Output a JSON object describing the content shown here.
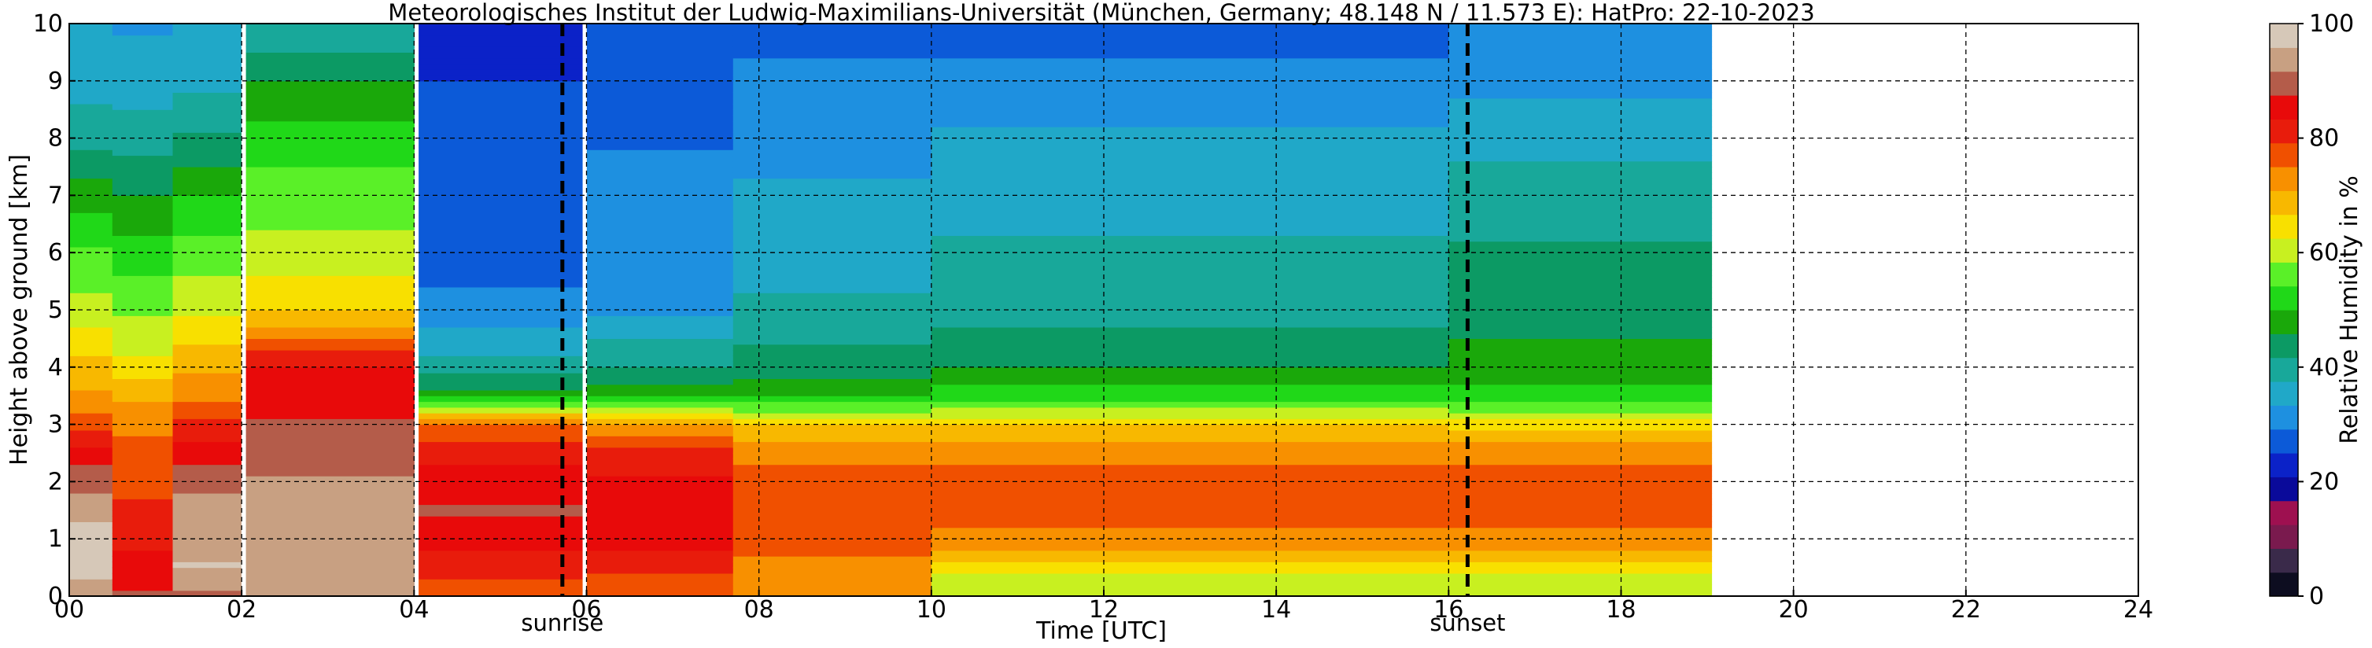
{
  "chart_data": {
    "type": "heatmap",
    "title": "Meteorologisches Institut der Ludwig-Maximilians-Universität (München, Germany; 48.148 N / 11.573 E):    HatPro: 22-10-2023",
    "xlabel": "Time [UTC]",
    "ylabel": "Height above ground [km]",
    "xlim": [
      0,
      24
    ],
    "ylim": [
      0,
      10
    ],
    "x_ticks": [
      "00",
      "02",
      "04",
      "06",
      "08",
      "10",
      "12",
      "14",
      "16",
      "18",
      "20",
      "22",
      "24"
    ],
    "x_tick_values": [
      0,
      2,
      4,
      6,
      8,
      10,
      12,
      14,
      16,
      18,
      20,
      22,
      24
    ],
    "y_ticks": [
      "0",
      "1",
      "2",
      "3",
      "4",
      "5",
      "6",
      "7",
      "8",
      "9",
      "10"
    ],
    "y_tick_values": [
      0,
      1,
      2,
      3,
      4,
      5,
      6,
      7,
      8,
      9,
      10
    ],
    "grid": true,
    "data_end_time": 19.05,
    "data_gaps": [
      2.02,
      4.03,
      5.98
    ],
    "events": [
      {
        "label": "sunrise",
        "time": 5.72
      },
      {
        "label": "sunset",
        "time": 16.22
      }
    ],
    "colorbar": {
      "label": "Relative Humidity in %",
      "min": 0,
      "max": 100,
      "ticks": [
        "0",
        "20",
        "40",
        "60",
        "80",
        "100"
      ],
      "tick_values": [
        0,
        20,
        40,
        60,
        80,
        100
      ],
      "colors": [
        "#0d0d20",
        "#3a2a4a",
        "#7a1a4e",
        "#9e1050",
        "#0a0a9a",
        "#0b22c8",
        "#0c5ad8",
        "#1e90e0",
        "#20a8c8",
        "#18a89a",
        "#0c9a64",
        "#1aa80a",
        "#20d818",
        "#5af028",
        "#c8f020",
        "#f8e000",
        "#f8b800",
        "#f89000",
        "#f05000",
        "#e81c0c",
        "#e80a0a",
        "#b45c4a",
        "#c8a082",
        "#d6c8b8"
      ]
    },
    "profiles": [
      {
        "time_range": [
          0.0,
          0.5
        ],
        "height_km": [
          0,
          0.5,
          1,
          1.5,
          2,
          2.5,
          3,
          3.5,
          4,
          5,
          6,
          7,
          8,
          9,
          10
        ],
        "rh_percent": [
          92,
          98,
          97,
          95,
          90,
          85,
          78,
          72,
          68,
          60,
          55,
          48,
          40,
          36,
          34
        ]
      },
      {
        "time_range": [
          0.5,
          1.2
        ],
        "height_km": [
          0,
          0.5,
          1,
          1.5,
          2,
          2.5,
          3,
          3.5,
          4,
          5,
          6,
          7,
          8,
          9,
          10
        ],
        "rh_percent": [
          88,
          85,
          82,
          80,
          78,
          76,
          74,
          70,
          64,
          58,
          52,
          46,
          40,
          35,
          33
        ]
      },
      {
        "time_range": [
          1.2,
          2.0
        ],
        "height_km": [
          0,
          0.5,
          1,
          1.5,
          2,
          2.5,
          3,
          3.5,
          4,
          5,
          6,
          7,
          8,
          9,
          10
        ],
        "rh_percent": [
          90,
          96,
          95,
          94,
          90,
          86,
          80,
          74,
          70,
          62,
          56,
          50,
          42,
          36,
          34
        ]
      },
      {
        "time_range": [
          2.05,
          4.0
        ],
        "height_km": [
          0,
          0.5,
          1,
          1.5,
          2,
          2.5,
          3,
          3.5,
          4,
          5,
          6,
          7,
          8,
          9,
          10
        ],
        "rh_percent": [
          92,
          95,
          95,
          94,
          92,
          90,
          88,
          86,
          84,
          66,
          60,
          56,
          52,
          46,
          38
        ]
      },
      {
        "time_range": [
          4.05,
          5.95
        ],
        "height_km": [
          0,
          0.5,
          1,
          1.5,
          2,
          2.5,
          3,
          3.5,
          4,
          5,
          6,
          7,
          8,
          9,
          10
        ],
        "rh_percent": [
          78,
          80,
          85,
          88,
          86,
          82,
          76,
          48,
          40,
          30,
          28,
          27,
          26,
          25,
          24
        ]
      },
      {
        "time_range": [
          6.0,
          7.7
        ],
        "height_km": [
          0,
          0.5,
          1,
          1.5,
          2,
          2.5,
          3,
          3.5,
          4,
          5,
          6,
          7,
          8,
          9,
          10
        ],
        "rh_percent": [
          76,
          80,
          86,
          86,
          84,
          80,
          72,
          48,
          42,
          32,
          30,
          30,
          29,
          28,
          26
        ]
      },
      {
        "time_range": [
          7.7,
          10.0
        ],
        "height_km": [
          0,
          0.5,
          1,
          1.5,
          2,
          2.5,
          3,
          3.5,
          4,
          5,
          6,
          7,
          8,
          9,
          10
        ],
        "rh_percent": [
          72,
          74,
          76,
          76,
          76,
          74,
          66,
          50,
          44,
          38,
          36,
          34,
          32,
          30,
          28
        ]
      },
      {
        "time_range": [
          10.0,
          16.0
        ],
        "height_km": [
          0,
          0.5,
          1,
          1.5,
          2,
          2.5,
          3,
          3.5,
          4,
          5,
          6,
          7,
          8,
          9,
          10
        ],
        "rh_percent": [
          58,
          64,
          74,
          76,
          76,
          74,
          66,
          52,
          46,
          40,
          38,
          36,
          34,
          30,
          28
        ]
      },
      {
        "time_range": [
          16.0,
          19.05
        ],
        "height_km": [
          0,
          0.5,
          1,
          1.5,
          2,
          2.5,
          3,
          3.5,
          4,
          5,
          6,
          7,
          8,
          9,
          10
        ],
        "rh_percent": [
          58,
          64,
          74,
          76,
          76,
          74,
          64,
          52,
          48,
          44,
          42,
          40,
          36,
          32,
          30
        ]
      }
    ]
  }
}
